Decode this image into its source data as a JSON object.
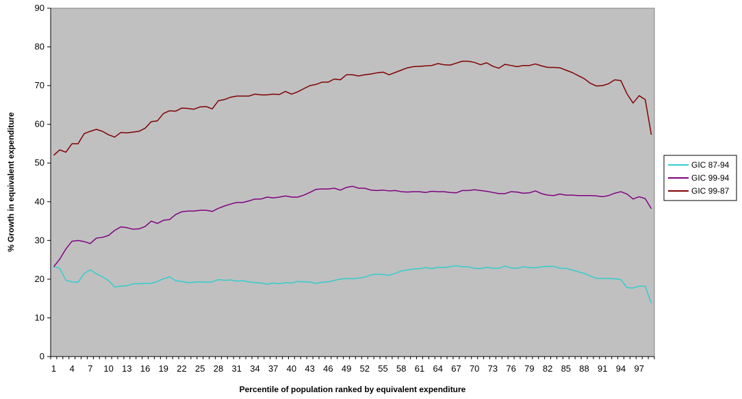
{
  "chart_data": {
    "type": "line",
    "title": "",
    "xlabel": "Percentile of population ranked by equivalent expenditure",
    "ylabel": "% Growth in equivalent expenditure",
    "xlim": [
      1,
      99
    ],
    "ylim": [
      0,
      90
    ],
    "x_tick_labels": [
      "1",
      "4",
      "7",
      "10",
      "13",
      "16",
      "19",
      "22",
      "25",
      "28",
      "31",
      "34",
      "37",
      "40",
      "43",
      "46",
      "49",
      "52",
      "55",
      "58",
      "61",
      "64",
      "67",
      "70",
      "73",
      "76",
      "79",
      "82",
      "85",
      "88",
      "91",
      "94",
      "97"
    ],
    "y_tick_labels": [
      "0",
      "10",
      "20",
      "30",
      "40",
      "50",
      "60",
      "70",
      "80",
      "90"
    ],
    "grid": false,
    "plot_background": "#C0C0C0",
    "legend_position": "right",
    "x": [
      1,
      2,
      3,
      4,
      5,
      6,
      7,
      8,
      9,
      10,
      11,
      12,
      13,
      14,
      15,
      16,
      17,
      18,
      19,
      20,
      21,
      22,
      23,
      24,
      25,
      26,
      27,
      28,
      29,
      30,
      31,
      32,
      33,
      34,
      35,
      36,
      37,
      38,
      39,
      40,
      41,
      42,
      43,
      44,
      45,
      46,
      47,
      48,
      49,
      50,
      51,
      52,
      53,
      54,
      55,
      56,
      57,
      58,
      59,
      60,
      61,
      62,
      63,
      64,
      65,
      66,
      67,
      68,
      69,
      70,
      71,
      72,
      73,
      74,
      75,
      76,
      77,
      78,
      79,
      80,
      81,
      82,
      83,
      84,
      85,
      86,
      87,
      88,
      89,
      90,
      91,
      92,
      93,
      94,
      95,
      96,
      97,
      98,
      99
    ],
    "series": [
      {
        "name": "GIC 87-94",
        "color": "#33CCCC",
        "values": [
          23.2,
          22.8,
          19.7,
          19.3,
          19.2,
          21.5,
          22.4,
          21.4,
          20.6,
          19.6,
          18.0,
          18.2,
          18.3,
          18.8,
          18.8,
          18.9,
          18.9,
          19.4,
          20.1,
          20.6,
          19.6,
          19.4,
          19.1,
          19.2,
          19.3,
          19.2,
          19.3,
          19.9,
          19.7,
          19.8,
          19.5,
          19.6,
          19.3,
          19.1,
          19.0,
          18.7,
          19.0,
          18.8,
          19.1,
          19.0,
          19.4,
          19.3,
          19.3,
          18.9,
          19.2,
          19.3,
          19.7,
          20.0,
          20.2,
          20.1,
          20.3,
          20.5,
          21.1,
          21.3,
          21.2,
          21.0,
          21.5,
          22.1,
          22.4,
          22.6,
          22.7,
          23.0,
          22.7,
          23.1,
          23.0,
          23.2,
          23.5,
          23.2,
          23.2,
          22.8,
          22.7,
          23.1,
          22.8,
          22.8,
          23.4,
          22.9,
          22.8,
          23.2,
          23.0,
          22.9,
          23.2,
          23.3,
          23.3,
          22.8,
          22.8,
          22.4,
          21.9,
          21.5,
          20.8,
          20.2,
          20.2,
          20.2,
          20.1,
          19.9,
          17.8,
          17.7,
          18.2,
          18.2,
          13.8
        ]
      },
      {
        "name": "GIC 99-94",
        "color": "#800080",
        "values": [
          23.2,
          25.2,
          27.8,
          29.8,
          30.0,
          29.7,
          29.2,
          30.6,
          30.8,
          31.3,
          32.6,
          33.5,
          33.3,
          32.9,
          33.0,
          33.6,
          35.0,
          34.4,
          35.2,
          35.4,
          36.7,
          37.4,
          37.6,
          37.6,
          37.8,
          37.8,
          37.5,
          38.3,
          38.9,
          39.4,
          39.8,
          39.8,
          40.2,
          40.7,
          40.7,
          41.2,
          41.0,
          41.2,
          41.5,
          41.2,
          41.2,
          41.7,
          42.4,
          43.2,
          43.3,
          43.3,
          43.5,
          43.0,
          43.7,
          44.0,
          43.5,
          43.5,
          43.0,
          42.9,
          43.0,
          42.8,
          42.9,
          42.6,
          42.5,
          42.6,
          42.6,
          42.4,
          42.7,
          42.6,
          42.6,
          42.4,
          42.3,
          42.9,
          42.9,
          43.1,
          42.9,
          42.7,
          42.4,
          42.1,
          42.1,
          42.6,
          42.5,
          42.2,
          42.3,
          42.8,
          42.1,
          41.7,
          41.6,
          42.0,
          41.7,
          41.7,
          41.6,
          41.6,
          41.6,
          41.5,
          41.3,
          41.6,
          42.2,
          42.6,
          42.0,
          40.7,
          41.3,
          40.8,
          38.2
        ]
      },
      {
        "name": "GIC 99-87",
        "color": "#800000",
        "values": [
          52.0,
          53.4,
          52.8,
          55.0,
          55.0,
          57.6,
          58.2,
          58.7,
          58.2,
          57.3,
          56.7,
          57.9,
          57.8,
          58.0,
          58.2,
          59.0,
          60.7,
          60.9,
          62.8,
          63.5,
          63.4,
          64.2,
          64.1,
          63.9,
          64.5,
          64.6,
          64.0,
          66.1,
          66.4,
          67.0,
          67.3,
          67.3,
          67.3,
          67.8,
          67.6,
          67.6,
          67.8,
          67.7,
          68.5,
          67.8,
          68.4,
          69.2,
          70.0,
          70.3,
          70.9,
          70.9,
          71.7,
          71.5,
          72.8,
          72.8,
          72.5,
          72.8,
          73.0,
          73.3,
          73.5,
          72.8,
          73.4,
          74.0,
          74.6,
          74.9,
          75.0,
          75.1,
          75.2,
          75.7,
          75.4,
          75.3,
          75.8,
          76.3,
          76.3,
          76.0,
          75.4,
          75.9,
          75.0,
          74.5,
          75.5,
          75.2,
          74.9,
          75.2,
          75.2,
          75.6,
          75.1,
          74.7,
          74.7,
          74.6,
          74.0,
          73.4,
          72.6,
          71.8,
          70.6,
          69.9,
          70.0,
          70.5,
          71.5,
          71.3,
          67.9,
          65.5,
          67.4,
          66.4,
          57.3
        ]
      }
    ]
  }
}
